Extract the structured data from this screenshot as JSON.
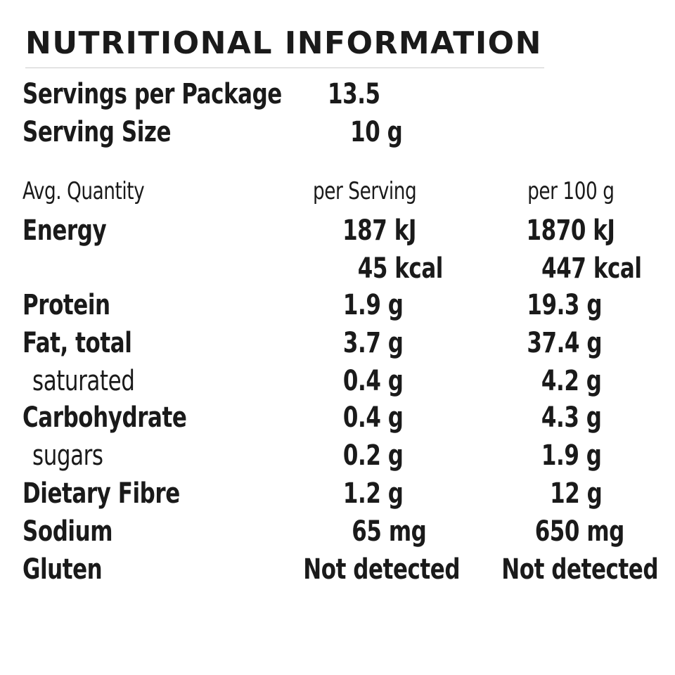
{
  "title": "NUTRITIONAL INFORMATION",
  "servings": {
    "per_package_label": "Servings per Package",
    "per_package_value": "13.5",
    "size_label": "Serving Size",
    "size_value": "10 g"
  },
  "table": {
    "headers": {
      "quantity": "Avg. Quantity",
      "per_serving": "per Serving",
      "per_100g": "per 100 g"
    },
    "rows": [
      {
        "label": "Energy",
        "per_serving": "187 kJ",
        "per_100g": "1870 kJ"
      },
      {
        "label": "",
        "per_serving": "45 kcal",
        "per_100g": "447 kcal"
      },
      {
        "label": "Protein",
        "per_serving": "1.9 g",
        "per_100g": "19.3 g"
      },
      {
        "label": "Fat, total",
        "per_serving": "3.7 g",
        "per_100g": "37.4 g"
      },
      {
        "label": "saturated",
        "per_serving": "0.4 g",
        "per_100g": "4.2 g"
      },
      {
        "label": "Carbohydrate",
        "per_serving": "0.4 g",
        "per_100g": "4.3 g"
      },
      {
        "label": "sugars",
        "per_serving": "0.2 g",
        "per_100g": "1.9 g"
      },
      {
        "label": "Dietary Fibre",
        "per_serving": "1.2 g",
        "per_100g": "12 g"
      },
      {
        "label": "Sodium",
        "per_serving": "65 mg",
        "per_100g": "650 mg"
      },
      {
        "label": "Gluten",
        "per_serving": "Not detected",
        "per_100g": "Not detected"
      }
    ]
  }
}
